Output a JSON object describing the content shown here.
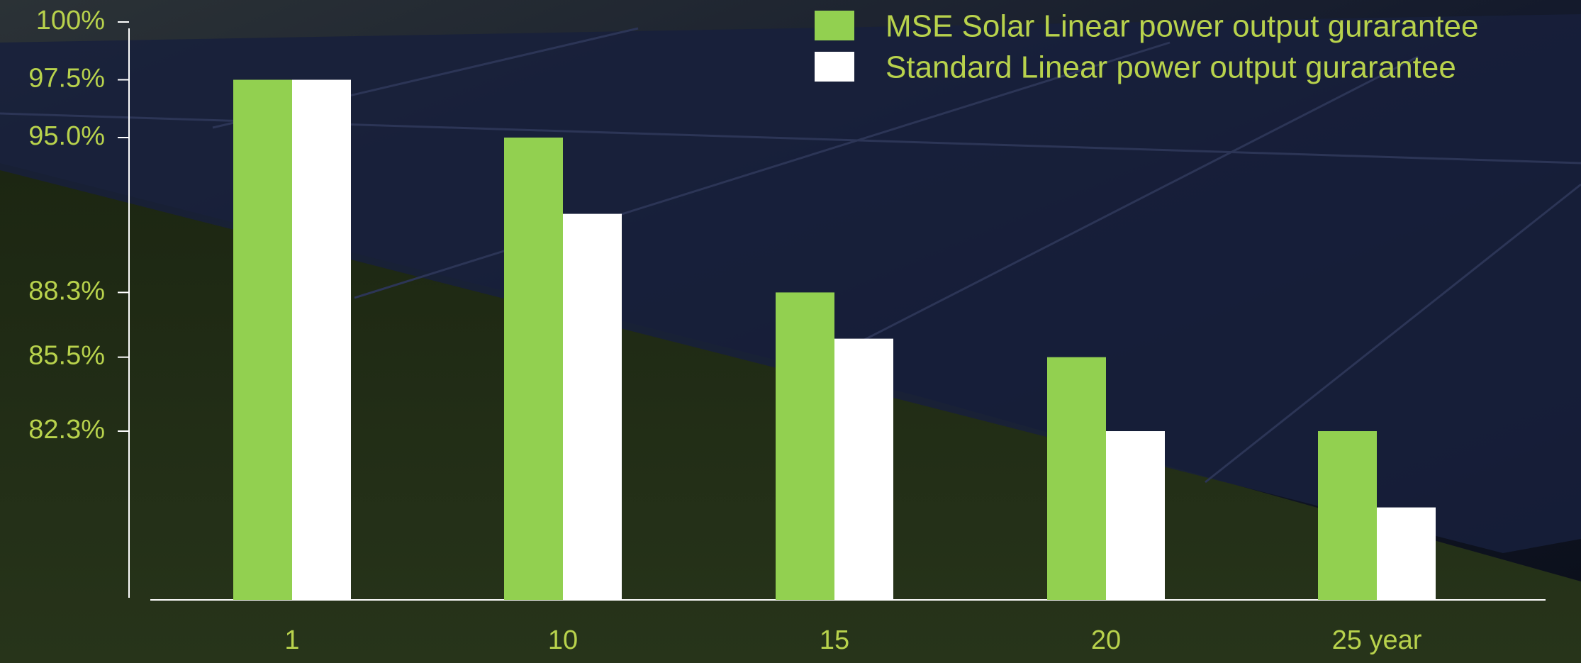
{
  "chart_data": {
    "type": "bar",
    "categories": [
      "1",
      "10",
      "15",
      "20",
      "25 year"
    ],
    "series": [
      {
        "name": "MSE Solar Linear power output gurarantee",
        "color": "#92d050",
        "values": [
          97.5,
          95.0,
          88.3,
          85.5,
          82.3
        ]
      },
      {
        "name": "Standard Linear power output gurarantee",
        "color": "#ffffff",
        "values": [
          97.5,
          91.7,
          86.3,
          82.3,
          79.0
        ]
      }
    ],
    "ylim": [
      75,
      100
    ],
    "yticks": [
      {
        "value": 100,
        "label": "100%"
      },
      {
        "value": 97.5,
        "label": "97.5%"
      },
      {
        "value": 95.0,
        "label": "95.0%"
      },
      {
        "value": 88.3,
        "label": "88.3%"
      },
      {
        "value": 85.5,
        "label": "85.5%"
      },
      {
        "value": 82.3,
        "label": "82.3%"
      }
    ],
    "grid": false
  }
}
